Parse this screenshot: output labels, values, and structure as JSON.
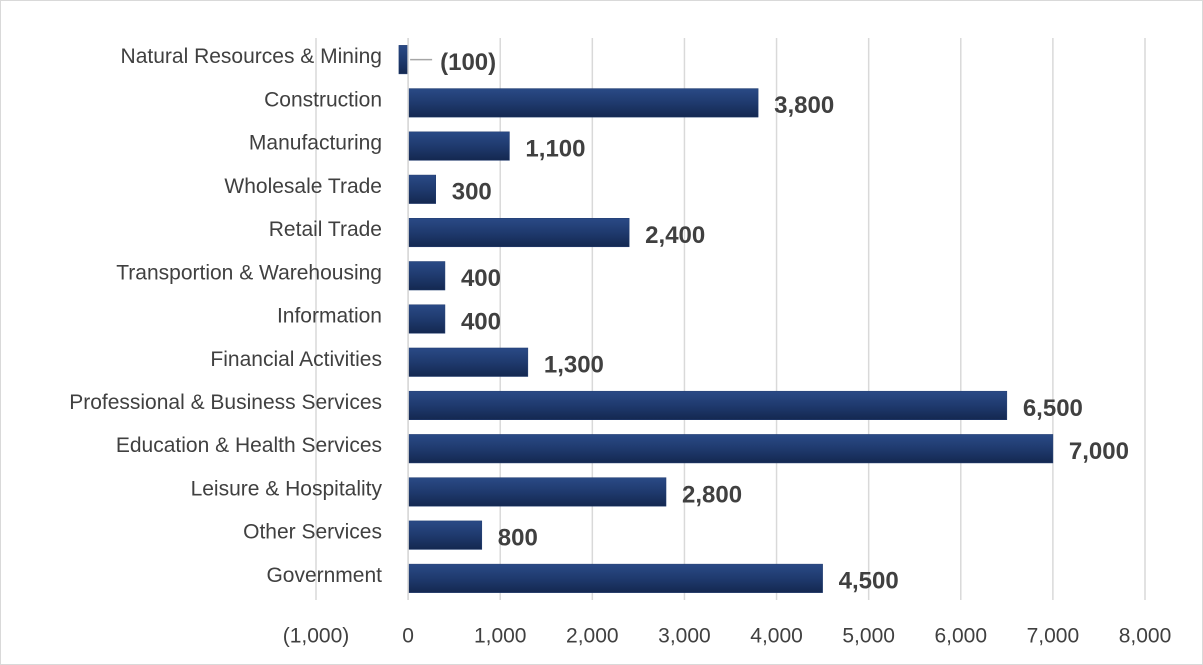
{
  "chart_data": {
    "type": "bar",
    "orientation": "horizontal",
    "categories": [
      "Natural Resources & Mining",
      "Construction",
      "Manufacturing",
      "Wholesale Trade",
      "Retail Trade",
      "Transportion & Warehousing",
      "Information",
      "Financial Activities",
      "Professional & Business Services",
      "Education & Health Services",
      "Leisure & Hospitality",
      "Other Services",
      "Government"
    ],
    "values": [
      -100,
      3800,
      1100,
      300,
      2400,
      400,
      400,
      1300,
      6500,
      7000,
      2800,
      800,
      4500
    ],
    "value_labels": [
      "(100)",
      "3,800",
      "1,100",
      "300",
      "2,400",
      "400",
      "400",
      "1,300",
      "6,500",
      "7,000",
      "2,800",
      "800",
      "4,500"
    ],
    "color": "#1f3a6e",
    "xlim": [
      -1000,
      8000
    ],
    "xticks": [
      {
        "value": -1000,
        "label": "(1,000)"
      },
      0,
      {
        "value": 1000,
        "label": "1,000"
      },
      {
        "value": 2000,
        "label": "2,000"
      },
      {
        "value": 3000,
        "label": "3,000"
      },
      {
        "value": 4000,
        "label": "4,000"
      },
      {
        "value": 5000,
        "label": "5,000"
      },
      {
        "value": 6000,
        "label": "6,000"
      },
      {
        "value": 7000,
        "label": "7,000"
      },
      {
        "value": 8000,
        "label": "8,000"
      }
    ],
    "grid": true
  }
}
